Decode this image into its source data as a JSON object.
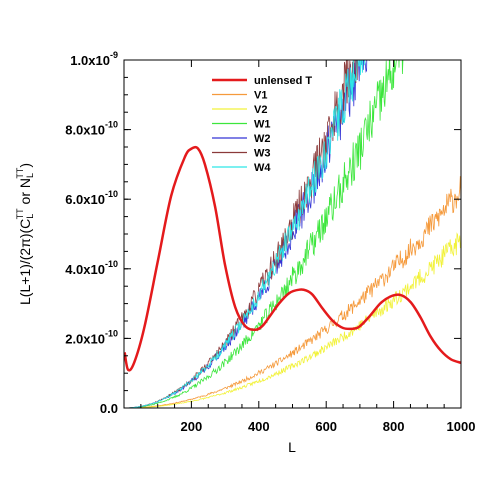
{
  "chart_data": {
    "type": "line",
    "xlabel": "L",
    "ylabel": {
      "pre": "L(L+1)/(2π)(C",
      "sub1": "L",
      "sup1": "TT",
      "mid": " or N",
      "sub2": "L",
      "sup2": "TT",
      "post": ")"
    },
    "xlim": [
      0,
      1000
    ],
    "ylim": [
      0,
      1e-09
    ],
    "x_ticks": [
      200,
      400,
      600,
      800,
      1000
    ],
    "x_tick_labels": [
      "200",
      "400",
      "600",
      "800",
      "1000"
    ],
    "y_ticks": [
      0,
      2e-10,
      4e-10,
      6e-10,
      8e-10,
      1e-09
    ],
    "y_tick_labels": [
      {
        "base": "0.0",
        "exp": ""
      },
      {
        "base": "2.0x10",
        "exp": "-10"
      },
      {
        "base": "4.0x10",
        "exp": "-10"
      },
      {
        "base": "6.0x10",
        "exp": "-10"
      },
      {
        "base": "8.0x10",
        "exp": "-10"
      },
      {
        "base": "1.0x10",
        "exp": "-9"
      }
    ],
    "grid": false,
    "legend_position": "top-center",
    "series": [
      {
        "name": "unlensed T",
        "color": "#e41a1c",
        "style": "smooth",
        "x": [
          2,
          12,
          30,
          60,
          100,
          140,
          180,
          200,
          220,
          240,
          270,
          300,
          330,
          360,
          390,
          410,
          430,
          460,
          490,
          520,
          540,
          560,
          590,
          620,
          650,
          680,
          700,
          730,
          760,
          790,
          820,
          850,
          880,
          910,
          940,
          970,
          1000
        ],
        "y": [
          1.6e-10,
          1.1e-10,
          1.3e-10,
          2.3e-10,
          4.2e-10,
          6.1e-10,
          7.2e-10,
          7.45e-10,
          7.45e-10,
          7e-10,
          5.8e-10,
          4.1e-10,
          2.9e-10,
          2.35e-10,
          2.25e-10,
          2.35e-10,
          2.6e-10,
          3e-10,
          3.3e-10,
          3.4e-10,
          3.38e-10,
          3.25e-10,
          2.85e-10,
          2.5e-10,
          2.3e-10,
          2.28e-10,
          2.35e-10,
          2.65e-10,
          3e-10,
          3.2e-10,
          3.25e-10,
          3.05e-10,
          2.6e-10,
          2.05e-10,
          1.65e-10,
          1.4e-10,
          1.3e-10
        ]
      },
      {
        "name": "V1",
        "color": "#f59a3c",
        "style": "noise",
        "x": [
          0,
          1000
        ],
        "k": 6.3e-10,
        "p": 2.0,
        "noise": 0.07,
        "seed": 11
      },
      {
        "name": "V2",
        "color": "#f2f23a",
        "style": "noise",
        "x": [
          0,
          1000
        ],
        "k": 4.85e-10,
        "p": 2.0,
        "noise": 0.07,
        "seed": 23
      },
      {
        "name": "W1",
        "color": "#3ce63c",
        "style": "noise",
        "x": [
          0,
          1000
        ],
        "k": 1.55e-09,
        "p": 2.05,
        "noise": 0.09,
        "seed": 37
      },
      {
        "name": "W2",
        "color": "#3535d5",
        "style": "noise",
        "x": [
          0,
          1000
        ],
        "k": 2.08e-09,
        "p": 2.05,
        "noise": 0.09,
        "seed": 41
      },
      {
        "name": "W3",
        "color": "#8b3a3a",
        "style": "noise",
        "x": [
          0,
          1000
        ],
        "k": 2.2e-09,
        "p": 2.05,
        "noise": 0.09,
        "seed": 53
      },
      {
        "name": "W4",
        "color": "#2ee6e6",
        "style": "noise",
        "x": [
          0,
          1000
        ],
        "k": 2.12e-09,
        "p": 2.05,
        "noise": 0.08,
        "seed": 67
      }
    ]
  }
}
